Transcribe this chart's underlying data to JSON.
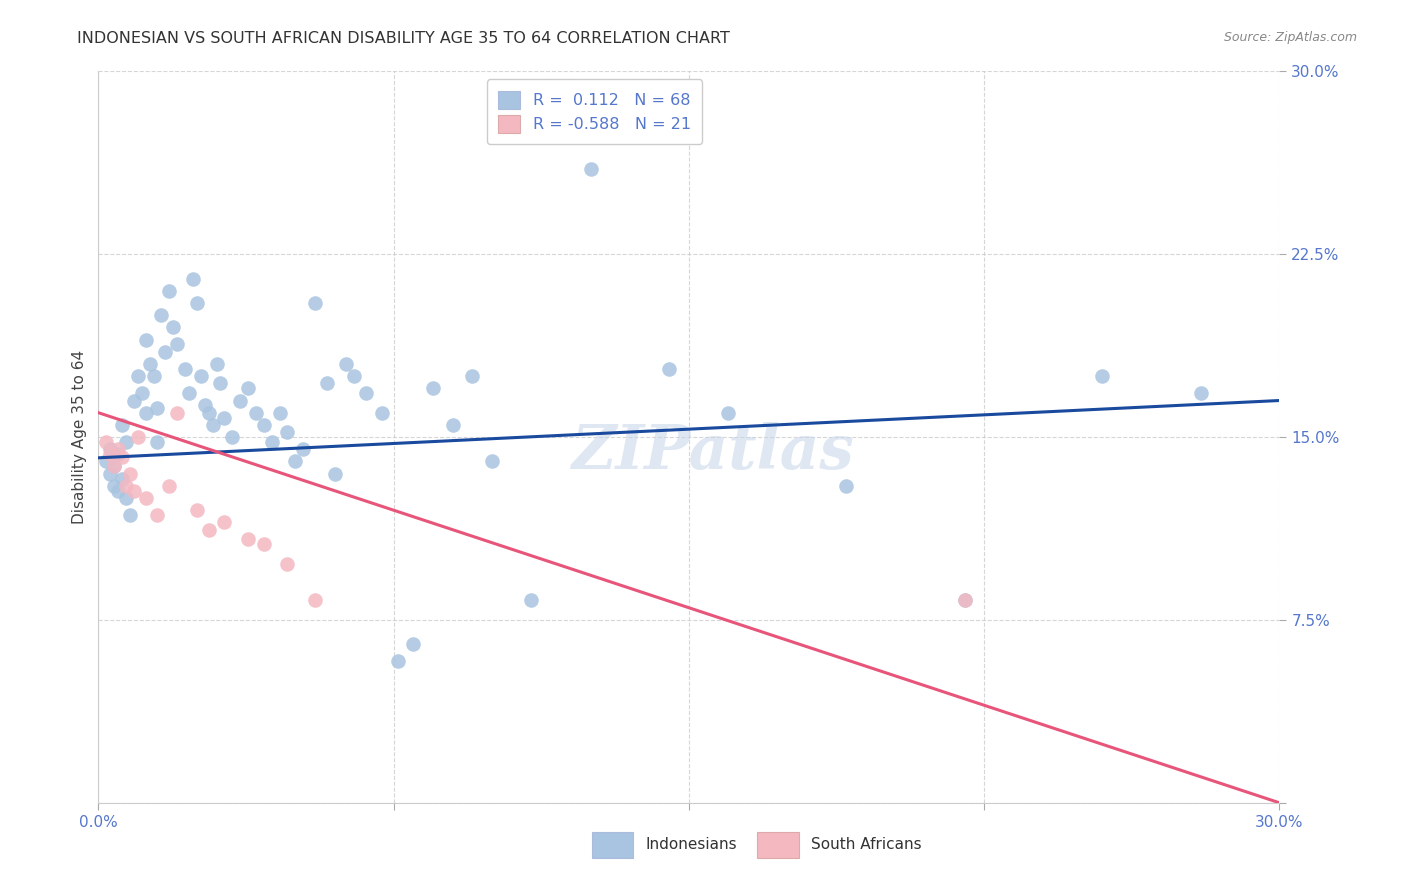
{
  "title": "INDONESIAN VS SOUTH AFRICAN DISABILITY AGE 35 TO 64 CORRELATION CHART",
  "source": "Source: ZipAtlas.com",
  "ylabel": "Disability Age 35 to 64",
  "xlim": [
    0.0,
    0.3
  ],
  "ylim": [
    0.0,
    0.3
  ],
  "R_indonesian": 0.112,
  "N_indonesian": 68,
  "R_south_african": -0.588,
  "N_south_african": 21,
  "indonesian_color": "#a8c4e0",
  "south_african_color": "#f4b8c1",
  "line_indonesian_color": "#1a4a9e",
  "line_south_african_color": "#e8557a",
  "watermark": "ZIPatlas",
  "indonesian_x": [
    0.002,
    0.003,
    0.003,
    0.004,
    0.004,
    0.005,
    0.005,
    0.006,
    0.006,
    0.007,
    0.007,
    0.008,
    0.009,
    0.01,
    0.011,
    0.012,
    0.012,
    0.013,
    0.014,
    0.015,
    0.015,
    0.016,
    0.017,
    0.018,
    0.019,
    0.02,
    0.022,
    0.023,
    0.024,
    0.025,
    0.026,
    0.027,
    0.028,
    0.029,
    0.03,
    0.031,
    0.032,
    0.034,
    0.036,
    0.038,
    0.04,
    0.042,
    0.044,
    0.046,
    0.048,
    0.05,
    0.052,
    0.055,
    0.058,
    0.06,
    0.063,
    0.065,
    0.068,
    0.072,
    0.076,
    0.08,
    0.085,
    0.09,
    0.095,
    0.1,
    0.11,
    0.125,
    0.145,
    0.16,
    0.19,
    0.22,
    0.255,
    0.28
  ],
  "indonesian_y": [
    0.14,
    0.135,
    0.145,
    0.13,
    0.138,
    0.128,
    0.143,
    0.155,
    0.133,
    0.125,
    0.148,
    0.118,
    0.165,
    0.175,
    0.168,
    0.16,
    0.19,
    0.18,
    0.175,
    0.162,
    0.148,
    0.2,
    0.185,
    0.21,
    0.195,
    0.188,
    0.178,
    0.168,
    0.215,
    0.205,
    0.175,
    0.163,
    0.16,
    0.155,
    0.18,
    0.172,
    0.158,
    0.15,
    0.165,
    0.17,
    0.16,
    0.155,
    0.148,
    0.16,
    0.152,
    0.14,
    0.145,
    0.205,
    0.172,
    0.135,
    0.18,
    0.175,
    0.168,
    0.16,
    0.058,
    0.065,
    0.17,
    0.155,
    0.175,
    0.14,
    0.083,
    0.26,
    0.178,
    0.16,
    0.13,
    0.083,
    0.175,
    0.168
  ],
  "south_african_x": [
    0.002,
    0.003,
    0.004,
    0.005,
    0.006,
    0.007,
    0.008,
    0.009,
    0.01,
    0.012,
    0.015,
    0.018,
    0.02,
    0.025,
    0.028,
    0.032,
    0.038,
    0.042,
    0.048,
    0.055,
    0.22
  ],
  "south_african_y": [
    0.148,
    0.143,
    0.138,
    0.145,
    0.142,
    0.13,
    0.135,
    0.128,
    0.15,
    0.125,
    0.118,
    0.13,
    0.16,
    0.12,
    0.112,
    0.115,
    0.108,
    0.106,
    0.098,
    0.083,
    0.083
  ],
  "ind_line_x0": 0.0,
  "ind_line_y0": 0.1415,
  "ind_line_x1": 0.3,
  "ind_line_y1": 0.165,
  "sa_line_x0": 0.0,
  "sa_line_y0": 0.16,
  "sa_line_x1": 0.3,
  "sa_line_y1": 0.0
}
